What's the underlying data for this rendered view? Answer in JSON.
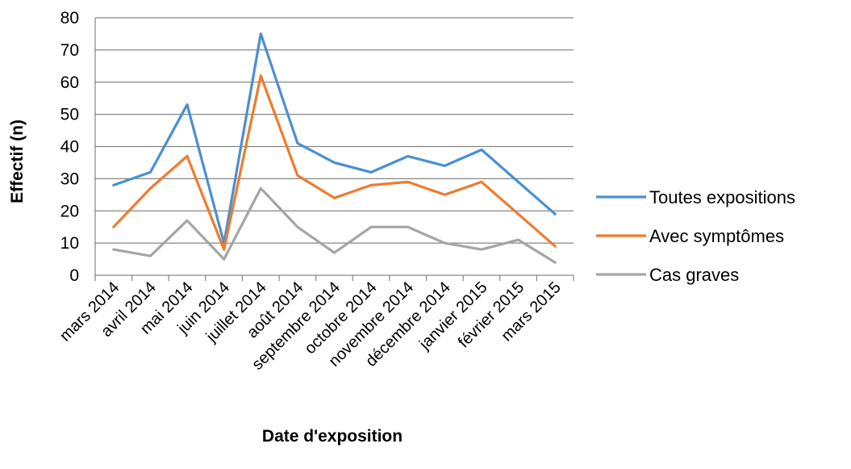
{
  "chart_data": {
    "type": "line",
    "title": "",
    "xlabel": "Date d'exposition",
    "ylabel": "Effectif (n)",
    "ylim": [
      0,
      80
    ],
    "yticks": [
      0,
      10,
      20,
      30,
      40,
      50,
      60,
      70,
      80
    ],
    "grid": true,
    "legend_position": "right",
    "categories": [
      "mars 2014",
      "avril 2014",
      "mai 2014",
      "juin 2014",
      "juillet 2014",
      "août 2014",
      "septembre 2014",
      "octobre 2014",
      "novembre 2014",
      "décembre 2014",
      "janvier 2015",
      "février 2015",
      "mars 2015"
    ],
    "series": [
      {
        "name": "Toutes expositions",
        "color": "#4a90d0",
        "values": [
          28,
          32,
          53,
          10,
          75,
          41,
          35,
          32,
          37,
          34,
          39,
          29,
          19
        ]
      },
      {
        "name": "Avec symptômes",
        "color": "#ef7b2e",
        "values": [
          15,
          27,
          37,
          8,
          62,
          31,
          24,
          28,
          29,
          25,
          29,
          19,
          9
        ]
      },
      {
        "name": "Cas graves",
        "color": "#a5a5a5",
        "values": [
          8,
          6,
          17,
          5,
          27,
          15,
          7,
          15,
          15,
          10,
          8,
          11,
          4
        ]
      }
    ]
  }
}
